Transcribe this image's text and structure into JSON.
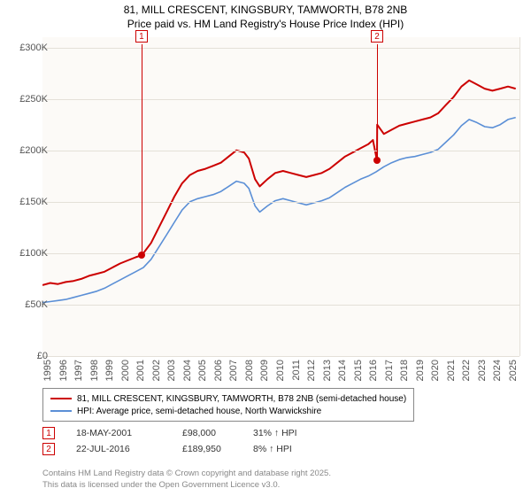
{
  "title": {
    "line1": "81, MILL CRESCENT, KINGSBURY, TAMWORTH, B78 2NB",
    "line2": "Price paid vs. HM Land Registry's House Price Index (HPI)"
  },
  "chart": {
    "type": "line",
    "background_color": "#fcfaf7",
    "grid_color": "#e4e0d8",
    "x": {
      "min": 1995,
      "max": 2025.8,
      "ticks": [
        1995,
        1996,
        1997,
        1998,
        1999,
        2000,
        2001,
        2002,
        2003,
        2004,
        2005,
        2006,
        2007,
        2008,
        2009,
        2010,
        2011,
        2012,
        2013,
        2014,
        2015,
        2016,
        2017,
        2018,
        2019,
        2020,
        2021,
        2022,
        2023,
        2024,
        2025
      ]
    },
    "y": {
      "min": 0,
      "max": 310000,
      "ticks": [
        {
          "v": 0,
          "label": "£0"
        },
        {
          "v": 50000,
          "label": "£50K"
        },
        {
          "v": 100000,
          "label": "£100K"
        },
        {
          "v": 150000,
          "label": "£150K"
        },
        {
          "v": 200000,
          "label": "£200K"
        },
        {
          "v": 250000,
          "label": "£250K"
        },
        {
          "v": 300000,
          "label": "£300K"
        }
      ]
    },
    "series": [
      {
        "name": "81, MILL CRESCENT, KINGSBURY, TAMWORTH, B78 2NB (semi-detached house)",
        "color": "#cc0000",
        "width": 2,
        "data": [
          [
            1995,
            69000
          ],
          [
            1995.5,
            71000
          ],
          [
            1996,
            70000
          ],
          [
            1996.5,
            72000
          ],
          [
            1997,
            73000
          ],
          [
            1997.5,
            75000
          ],
          [
            1998,
            78000
          ],
          [
            1998.5,
            80000
          ],
          [
            1999,
            82000
          ],
          [
            1999.5,
            86000
          ],
          [
            2000,
            90000
          ],
          [
            2000.5,
            93000
          ],
          [
            2001,
            96000
          ],
          [
            2001.38,
            98000
          ],
          [
            2001.5,
            100000
          ],
          [
            2002,
            110000
          ],
          [
            2002.5,
            125000
          ],
          [
            2003,
            140000
          ],
          [
            2003.5,
            155000
          ],
          [
            2004,
            168000
          ],
          [
            2004.5,
            176000
          ],
          [
            2005,
            180000
          ],
          [
            2005.5,
            182000
          ],
          [
            2006,
            185000
          ],
          [
            2006.5,
            188000
          ],
          [
            2007,
            194000
          ],
          [
            2007.5,
            200000
          ],
          [
            2008,
            198000
          ],
          [
            2008.3,
            192000
          ],
          [
            2008.7,
            172000
          ],
          [
            2009,
            165000
          ],
          [
            2009.5,
            172000
          ],
          [
            2010,
            178000
          ],
          [
            2010.5,
            180000
          ],
          [
            2011,
            178000
          ],
          [
            2011.5,
            176000
          ],
          [
            2012,
            174000
          ],
          [
            2012.5,
            176000
          ],
          [
            2013,
            178000
          ],
          [
            2013.5,
            182000
          ],
          [
            2014,
            188000
          ],
          [
            2014.5,
            194000
          ],
          [
            2015,
            198000
          ],
          [
            2015.5,
            202000
          ],
          [
            2016,
            206000
          ],
          [
            2016.3,
            210000
          ],
          [
            2016.56,
            189950
          ],
          [
            2016.57,
            225000
          ],
          [
            2017,
            216000
          ],
          [
            2017.5,
            220000
          ],
          [
            2018,
            224000
          ],
          [
            2018.5,
            226000
          ],
          [
            2019,
            228000
          ],
          [
            2019.5,
            230000
          ],
          [
            2020,
            232000
          ],
          [
            2020.5,
            236000
          ],
          [
            2021,
            244000
          ],
          [
            2021.5,
            252000
          ],
          [
            2022,
            262000
          ],
          [
            2022.5,
            268000
          ],
          [
            2023,
            264000
          ],
          [
            2023.5,
            260000
          ],
          [
            2024,
            258000
          ],
          [
            2024.5,
            260000
          ],
          [
            2025,
            262000
          ],
          [
            2025.5,
            260000
          ]
        ]
      },
      {
        "name": "HPI: Average price, semi-detached house, North Warwickshire",
        "color": "#5b8fd6",
        "width": 1.6,
        "data": [
          [
            1995,
            52000
          ],
          [
            1995.5,
            53000
          ],
          [
            1996,
            54000
          ],
          [
            1996.5,
            55000
          ],
          [
            1997,
            57000
          ],
          [
            1997.5,
            59000
          ],
          [
            1998,
            61000
          ],
          [
            1998.5,
            63000
          ],
          [
            1999,
            66000
          ],
          [
            1999.5,
            70000
          ],
          [
            2000,
            74000
          ],
          [
            2000.5,
            78000
          ],
          [
            2001,
            82000
          ],
          [
            2001.5,
            86000
          ],
          [
            2002,
            94000
          ],
          [
            2002.5,
            106000
          ],
          [
            2003,
            118000
          ],
          [
            2003.5,
            130000
          ],
          [
            2004,
            142000
          ],
          [
            2004.5,
            150000
          ],
          [
            2005,
            153000
          ],
          [
            2005.5,
            155000
          ],
          [
            2006,
            157000
          ],
          [
            2006.5,
            160000
          ],
          [
            2007,
            165000
          ],
          [
            2007.5,
            170000
          ],
          [
            2008,
            168000
          ],
          [
            2008.3,
            163000
          ],
          [
            2008.7,
            146000
          ],
          [
            2009,
            140000
          ],
          [
            2009.5,
            146000
          ],
          [
            2010,
            151000
          ],
          [
            2010.5,
            153000
          ],
          [
            2011,
            151000
          ],
          [
            2011.5,
            149000
          ],
          [
            2012,
            147000
          ],
          [
            2012.5,
            149000
          ],
          [
            2013,
            151000
          ],
          [
            2013.5,
            154000
          ],
          [
            2014,
            159000
          ],
          [
            2014.5,
            164000
          ],
          [
            2015,
            168000
          ],
          [
            2015.5,
            172000
          ],
          [
            2016,
            175000
          ],
          [
            2016.5,
            179000
          ],
          [
            2017,
            184000
          ],
          [
            2017.5,
            188000
          ],
          [
            2018,
            191000
          ],
          [
            2018.5,
            193000
          ],
          [
            2019,
            194000
          ],
          [
            2019.5,
            196000
          ],
          [
            2020,
            198000
          ],
          [
            2020.5,
            201000
          ],
          [
            2021,
            208000
          ],
          [
            2021.5,
            215000
          ],
          [
            2022,
            224000
          ],
          [
            2022.5,
            230000
          ],
          [
            2023,
            227000
          ],
          [
            2023.5,
            223000
          ],
          [
            2024,
            222000
          ],
          [
            2024.5,
            225000
          ],
          [
            2025,
            230000
          ],
          [
            2025.5,
            232000
          ]
        ]
      }
    ],
    "markers": [
      {
        "num": "1",
        "x": 2001.38,
        "y": 98000,
        "color": "#cc0000",
        "label_y_top": true
      },
      {
        "num": "2",
        "x": 2016.56,
        "y": 189950,
        "color": "#cc0000",
        "label_y_top": true
      }
    ]
  },
  "legend": {
    "items": [
      {
        "color": "#cc0000",
        "label": "81, MILL CRESCENT, KINGSBURY, TAMWORTH, B78 2NB (semi-detached house)"
      },
      {
        "color": "#5b8fd6",
        "label": "HPI: Average price, semi-detached house, North Warwickshire"
      }
    ]
  },
  "sales": [
    {
      "num": "1",
      "date": "18-MAY-2001",
      "price": "£98,000",
      "pct": "31% ↑ HPI"
    },
    {
      "num": "2",
      "date": "22-JUL-2016",
      "price": "£189,950",
      "pct": "8% ↑ HPI"
    }
  ],
  "footer": {
    "line1": "Contains HM Land Registry data © Crown copyright and database right 2025.",
    "line2": "This data is licensed under the Open Government Licence v3.0."
  }
}
